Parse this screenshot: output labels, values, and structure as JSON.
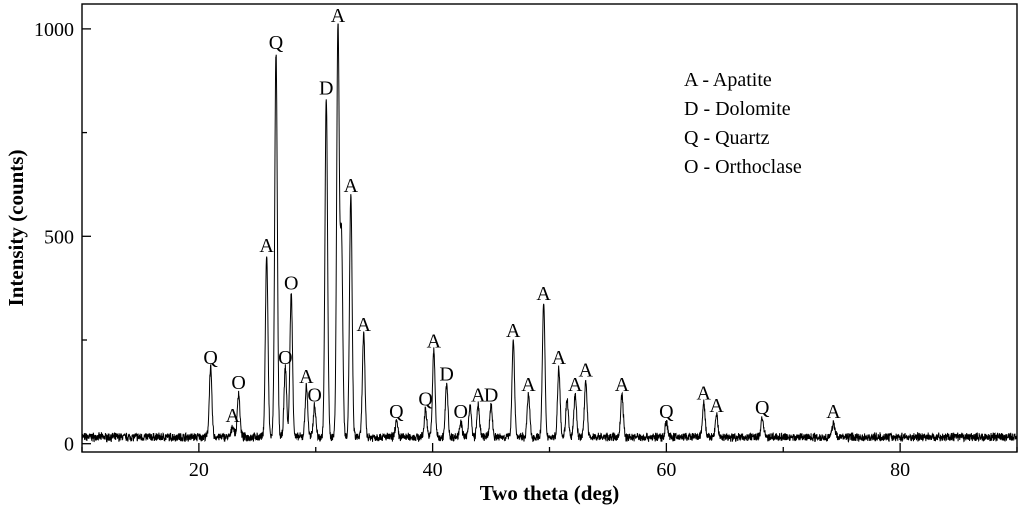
{
  "chart_data": {
    "type": "line",
    "title": "",
    "xlabel": "Two theta (deg)",
    "ylabel": "Intensity (counts)",
    "xlim": [
      10,
      90
    ],
    "ylim": [
      -20,
      1060
    ],
    "x_ticks": [
      {
        "value": 20,
        "label": "20"
      },
      {
        "value": 40,
        "label": "40"
      },
      {
        "value": 60,
        "label": "60"
      },
      {
        "value": 80,
        "label": "80"
      }
    ],
    "y_ticks": [
      {
        "value": 0,
        "label": "0"
      },
      {
        "value": 500,
        "label": "500"
      },
      {
        "value": 1000,
        "label": "1000"
      }
    ],
    "grid": false,
    "legend_position": "top-right",
    "legend": [
      "A - Apatite",
      "D - Dolomite",
      "Q - Quartz",
      "O - Orthoclase"
    ],
    "peaks": [
      {
        "x": 21.0,
        "y": 175,
        "label": "Q"
      },
      {
        "x": 22.9,
        "y": 35,
        "label": "A"
      },
      {
        "x": 23.4,
        "y": 115,
        "label": "O"
      },
      {
        "x": 25.8,
        "y": 445,
        "label": "A"
      },
      {
        "x": 26.6,
        "y": 935,
        "label": "Q"
      },
      {
        "x": 27.4,
        "y": 175,
        "label": "O"
      },
      {
        "x": 27.9,
        "y": 355,
        "label": "O"
      },
      {
        "x": 29.2,
        "y": 130,
        "label": "A"
      },
      {
        "x": 29.9,
        "y": 85,
        "label": "O"
      },
      {
        "x": 30.9,
        "y": 825,
        "label": "D"
      },
      {
        "x": 31.9,
        "y": 1000,
        "label": "A"
      },
      {
        "x": 32.2,
        "y": 490,
        "label": null
      },
      {
        "x": 33.0,
        "y": 590,
        "label": "A"
      },
      {
        "x": 34.1,
        "y": 255,
        "label": "A"
      },
      {
        "x": 36.9,
        "y": 45,
        "label": "Q"
      },
      {
        "x": 39.4,
        "y": 75,
        "label": "Q"
      },
      {
        "x": 40.1,
        "y": 215,
        "label": "A"
      },
      {
        "x": 41.2,
        "y": 135,
        "label": "D"
      },
      {
        "x": 42.4,
        "y": 45,
        "label": "O"
      },
      {
        "x": 43.2,
        "y": 85,
        "label": null
      },
      {
        "x": 43.9,
        "y": 85,
        "label": "A"
      },
      {
        "x": 45.0,
        "y": 85,
        "label": "D"
      },
      {
        "x": 46.9,
        "y": 240,
        "label": "A"
      },
      {
        "x": 48.2,
        "y": 110,
        "label": "A"
      },
      {
        "x": 49.5,
        "y": 330,
        "label": "A"
      },
      {
        "x": 50.8,
        "y": 175,
        "label": "A"
      },
      {
        "x": 51.5,
        "y": 100,
        "label": null
      },
      {
        "x": 52.2,
        "y": 110,
        "label": "A"
      },
      {
        "x": 53.1,
        "y": 145,
        "label": "A"
      },
      {
        "x": 56.2,
        "y": 110,
        "label": "A"
      },
      {
        "x": 60.0,
        "y": 45,
        "label": "Q"
      },
      {
        "x": 63.2,
        "y": 90,
        "label": "A"
      },
      {
        "x": 64.3,
        "y": 60,
        "label": "A"
      },
      {
        "x": 68.2,
        "y": 55,
        "label": "Q"
      },
      {
        "x": 74.3,
        "y": 45,
        "label": "A"
      }
    ]
  }
}
